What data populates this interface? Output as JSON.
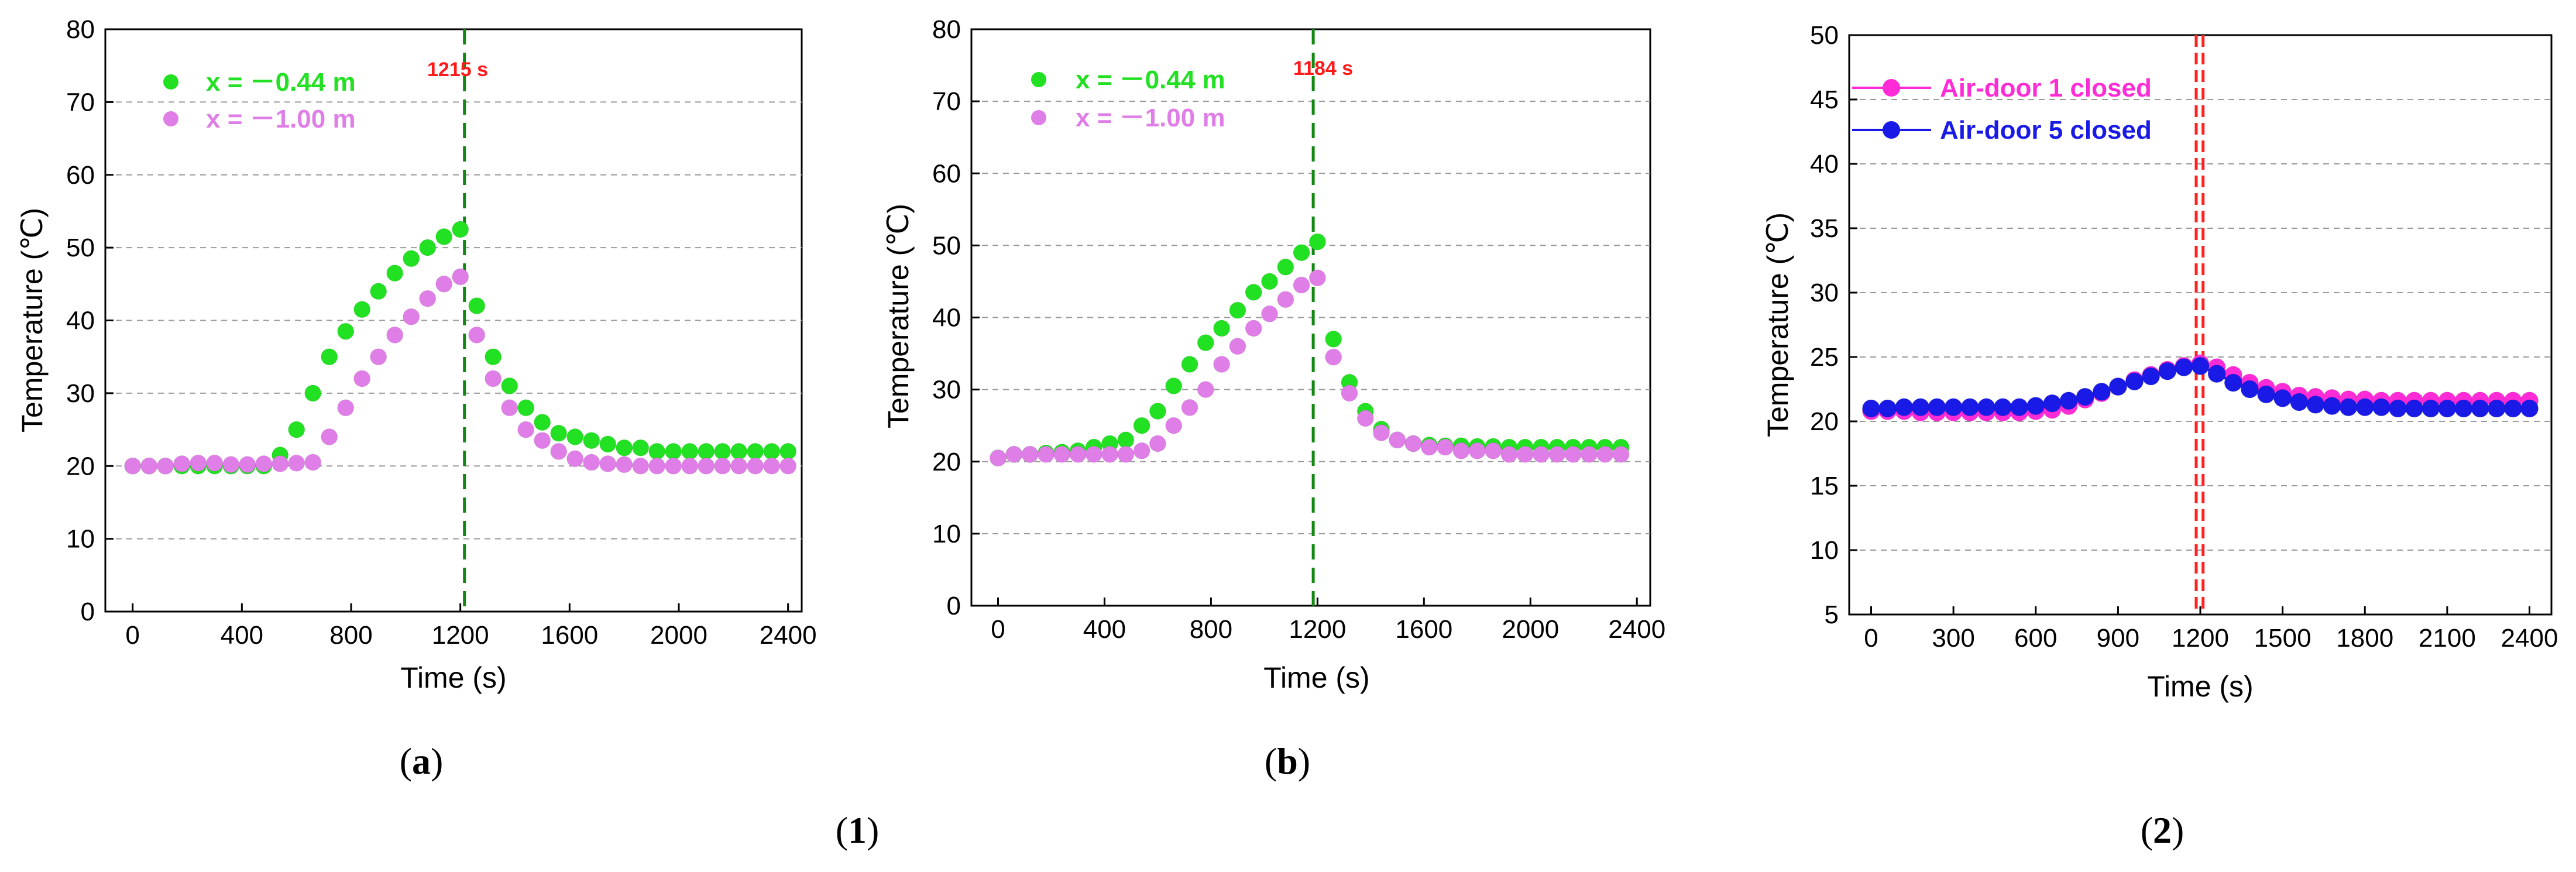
{
  "chart_data": [
    {
      "type": "scatter",
      "id": "a",
      "xlabel": "Time (s)",
      "ylabel": "Temperature (℃)",
      "xlim": [
        -100,
        2450
      ],
      "ylim": [
        0,
        80
      ],
      "xticks": [
        0,
        400,
        800,
        1200,
        1600,
        2000,
        2400
      ],
      "yticks": [
        0,
        10,
        20,
        30,
        40,
        50,
        60,
        70,
        80
      ],
      "grid": "horizontal-dashed",
      "legend_position": "top-left",
      "annotation": {
        "text": "1215 s",
        "x": 1215
      },
      "series": [
        {
          "name": "x = －0.44 m",
          "color": "#22e022",
          "x": [
            0,
            60,
            120,
            180,
            240,
            300,
            360,
            420,
            480,
            540,
            600,
            660,
            720,
            780,
            840,
            900,
            960,
            1020,
            1080,
            1140,
            1200,
            1260,
            1320,
            1380,
            1440,
            1500,
            1560,
            1620,
            1680,
            1740,
            1800,
            1860,
            1920,
            1980,
            2040,
            2100,
            2160,
            2220,
            2280,
            2340,
            2400
          ],
          "y": [
            20,
            20,
            20,
            20,
            20,
            20,
            20,
            20,
            20,
            21.5,
            25,
            30,
            35,
            38.5,
            41.5,
            44,
            46.5,
            48.5,
            50,
            51.5,
            52.5,
            42,
            35,
            31,
            28,
            26,
            24.5,
            24,
            23.5,
            23,
            22.5,
            22.5,
            22,
            22,
            22,
            22,
            22,
            22,
            22,
            22,
            22
          ]
        },
        {
          "name": "x = －1.00 m",
          "color": "#e07ee8",
          "x": [
            0,
            60,
            120,
            180,
            240,
            300,
            360,
            420,
            480,
            540,
            600,
            660,
            720,
            780,
            840,
            900,
            960,
            1020,
            1080,
            1140,
            1200,
            1260,
            1320,
            1380,
            1440,
            1500,
            1560,
            1620,
            1680,
            1740,
            1800,
            1860,
            1920,
            1980,
            2040,
            2100,
            2160,
            2220,
            2280,
            2340,
            2400
          ],
          "y": [
            20,
            20,
            20,
            20.3,
            20.4,
            20.4,
            20.2,
            20.2,
            20.3,
            20.3,
            20.4,
            20.5,
            24,
            28,
            32,
            35,
            38,
            40.5,
            43,
            45,
            46,
            38,
            32,
            28,
            25,
            23.5,
            22,
            21,
            20.5,
            20.3,
            20.2,
            20,
            20,
            20,
            20,
            20,
            20,
            20,
            20,
            20,
            20
          ]
        }
      ]
    },
    {
      "type": "scatter",
      "id": "b",
      "xlabel": "Time (s)",
      "ylabel": "Temperature (℃)",
      "xlim": [
        -100,
        2450
      ],
      "ylim": [
        0,
        80
      ],
      "xticks": [
        0,
        400,
        800,
        1200,
        1600,
        2000,
        2400
      ],
      "yticks": [
        0,
        10,
        20,
        30,
        40,
        50,
        60,
        70,
        80
      ],
      "grid": "horizontal-dashed",
      "legend_position": "top-left",
      "annotation": {
        "text": "1184 s",
        "x": 1184
      },
      "series": [
        {
          "name": "x = －0.44 m",
          "color": "#22e022",
          "x": [
            0,
            60,
            120,
            180,
            240,
            300,
            360,
            420,
            480,
            540,
            600,
            660,
            720,
            780,
            840,
            900,
            960,
            1020,
            1080,
            1140,
            1200,
            1260,
            1320,
            1380,
            1440,
            1500,
            1560,
            1620,
            1680,
            1740,
            1800,
            1860,
            1920,
            1980,
            2040,
            2100,
            2160,
            2220,
            2280,
            2340
          ],
          "y": [
            20.5,
            21,
            21,
            21.2,
            21.3,
            21.5,
            22,
            22.5,
            23,
            25,
            27,
            30.5,
            33.5,
            36.5,
            38.5,
            41,
            43.5,
            45,
            47,
            49,
            50.5,
            37,
            31,
            27,
            24.5,
            23,
            22.5,
            22.3,
            22.2,
            22.2,
            22.1,
            22.1,
            22,
            22,
            22,
            22,
            22,
            22,
            22,
            22
          ]
        },
        {
          "name": "x = －1.00 m",
          "color": "#e07ee8",
          "x": [
            0,
            60,
            120,
            180,
            240,
            300,
            360,
            420,
            480,
            540,
            600,
            660,
            720,
            780,
            840,
            900,
            960,
            1020,
            1080,
            1140,
            1200,
            1260,
            1320,
            1380,
            1440,
            1500,
            1560,
            1620,
            1680,
            1740,
            1800,
            1860,
            1920,
            1980,
            2040,
            2100,
            2160,
            2220,
            2280,
            2340
          ],
          "y": [
            20.5,
            21,
            21,
            21,
            21,
            21,
            21,
            21,
            21,
            21.5,
            22.5,
            25,
            27.5,
            30,
            33.5,
            36,
            38.5,
            40.5,
            42.5,
            44.5,
            45.5,
            34.5,
            29.5,
            26,
            24,
            23,
            22.5,
            22,
            22,
            21.5,
            21.5,
            21.5,
            21,
            21,
            21,
            21,
            21,
            21,
            21,
            21
          ]
        }
      ]
    },
    {
      "type": "line",
      "id": "2",
      "xlabel": "Time (s)",
      "ylabel": "Temperature (℃)",
      "xlim": [
        -80,
        2480
      ],
      "ylim": [
        5,
        50
      ],
      "xticks": [
        0,
        300,
        600,
        900,
        1200,
        1500,
        1800,
        2100,
        2400
      ],
      "yticks": [
        5,
        10,
        15,
        20,
        25,
        30,
        35,
        40,
        45,
        50
      ],
      "grid": "horizontal-dashed",
      "legend_position": "top-left",
      "vlines": [
        1185,
        1210
      ],
      "series": [
        {
          "name": "Air-door 1 closed",
          "color": "#ff2bd6",
          "x": [
            0,
            60,
            120,
            180,
            240,
            300,
            360,
            420,
            480,
            540,
            600,
            660,
            720,
            780,
            840,
            900,
            960,
            1020,
            1080,
            1140,
            1200,
            1260,
            1320,
            1380,
            1440,
            1500,
            1560,
            1620,
            1680,
            1740,
            1800,
            1860,
            1920,
            1980,
            2040,
            2100,
            2160,
            2220,
            2280,
            2340,
            2400
          ],
          "y": [
            20.8,
            20.8,
            20.8,
            20.7,
            20.7,
            20.7,
            20.7,
            20.7,
            20.7,
            20.7,
            20.8,
            20.9,
            21.2,
            21.7,
            22.2,
            22.7,
            23.2,
            23.6,
            24,
            24.3,
            24.5,
            24.2,
            23.6,
            23,
            22.6,
            22.3,
            22,
            21.9,
            21.8,
            21.7,
            21.7,
            21.6,
            21.6,
            21.6,
            21.6,
            21.6,
            21.6,
            21.6,
            21.6,
            21.6,
            21.6
          ]
        },
        {
          "name": "Air-door 5 closed",
          "color": "#1a1ae6",
          "x": [
            0,
            60,
            120,
            180,
            240,
            300,
            360,
            420,
            480,
            540,
            600,
            660,
            720,
            780,
            840,
            900,
            960,
            1020,
            1080,
            1140,
            1200,
            1260,
            1320,
            1380,
            1440,
            1500,
            1560,
            1620,
            1680,
            1740,
            1800,
            1860,
            1920,
            1980,
            2040,
            2100,
            2160,
            2220,
            2280,
            2340,
            2400
          ],
          "y": [
            21,
            21,
            21.1,
            21.1,
            21.1,
            21.1,
            21.1,
            21.1,
            21.1,
            21.1,
            21.2,
            21.4,
            21.6,
            21.9,
            22.3,
            22.7,
            23.1,
            23.5,
            23.9,
            24.2,
            24.3,
            23.7,
            23,
            22.5,
            22.1,
            21.8,
            21.5,
            21.3,
            21.2,
            21.1,
            21.1,
            21.1,
            21,
            21,
            21,
            21,
            21,
            21,
            21,
            21,
            21
          ]
        }
      ]
    }
  ],
  "captions": {
    "a": "a",
    "b": "b",
    "group1": "1",
    "group2": "2"
  }
}
